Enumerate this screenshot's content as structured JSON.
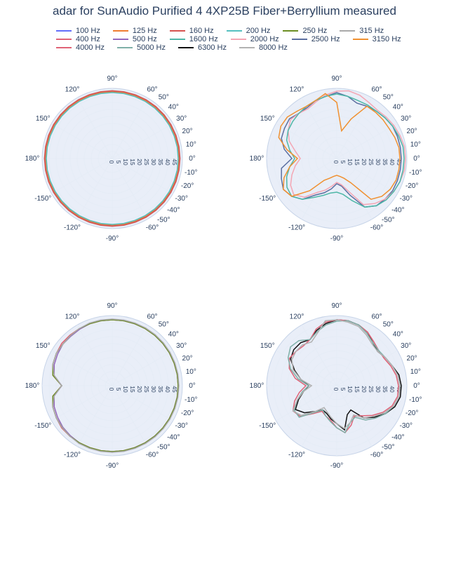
{
  "title": "adar for SunAudio Purified 4 4XP25B Fiber+Berryllium measured",
  "title_fontsize": 17,
  "title_color": "#2a3f5f",
  "background_color": "#ffffff",
  "plot_background": "#e9eef8",
  "grid_color": "#e5ecf6",
  "axis_label_color": "#2a3f5f",
  "axis_label_fontsize": 10,
  "radial_label_fontsize": 8.5,
  "series_stroke_width": 1.5,
  "angles_deg": [
    -180,
    -170,
    -160,
    -150,
    -140,
    -130,
    -120,
    -110,
    -100,
    -90,
    -80,
    -70,
    -60,
    -50,
    -40,
    -30,
    -20,
    -10,
    0,
    10,
    20,
    30,
    40,
    50,
    60,
    70,
    80,
    90,
    100,
    110,
    120,
    130,
    140,
    150,
    160,
    170,
    180
  ],
  "angle_ticks_deg": [
    0,
    10,
    20,
    30,
    40,
    50,
    60,
    90,
    120,
    150,
    180,
    -150,
    -120,
    -90,
    -60,
    -50,
    -40,
    -30,
    -20,
    -10
  ],
  "angle_tick_labels": [
    "0°",
    "10°",
    "20°",
    "30°",
    "40°",
    "50°",
    "60°",
    "90°",
    "120°",
    "150°",
    "180°",
    "-150°",
    "-120°",
    "-90°",
    "-60°",
    "-50°",
    "-40°",
    "-30°",
    "-20°",
    "-10°"
  ],
  "r_max": 50,
  "r_ticks": [
    0,
    5,
    10,
    15,
    20,
    25,
    30,
    35,
    40,
    45
  ],
  "legend": [
    {
      "label": "100 Hz",
      "color": "#636efa"
    },
    {
      "label": "125 Hz",
      "color": "#ef7d30"
    },
    {
      "label": "160 Hz",
      "color": "#d6534f"
    },
    {
      "label": "200 Hz",
      "color": "#55c0c0"
    },
    {
      "label": "250 Hz",
      "color": "#6b8e23"
    },
    {
      "label": "315 Hz",
      "color": "#a9a9a9"
    },
    {
      "label": "400 Hz",
      "color": "#e06377"
    },
    {
      "label": "500 Hz",
      "color": "#9467bd"
    },
    {
      "label": "1600 Hz",
      "color": "#4fb7a7"
    },
    {
      "label": "2000 Hz",
      "color": "#f4a6b4"
    },
    {
      "label": "2500 Hz",
      "color": "#5b6fa0"
    },
    {
      "label": "3150 Hz",
      "color": "#f09030"
    },
    {
      "label": "4000 Hz",
      "color": "#e06377"
    },
    {
      "label": "5000 Hz",
      "color": "#7fb0a8"
    },
    {
      "label": "6300 Hz",
      "color": "#111111"
    },
    {
      "label": "8000 Hz",
      "color": "#b2b2b2"
    }
  ],
  "panels": [
    {
      "id": "p1",
      "series": [
        {
          "color": "#636efa",
          "r": [
            48,
            48,
            48,
            48,
            48,
            48,
            48,
            48,
            48,
            48,
            48,
            48,
            48,
            48,
            48,
            48,
            48,
            48,
            48,
            48,
            48,
            48,
            48,
            48,
            48,
            48,
            48,
            48,
            48,
            48,
            48,
            48,
            48,
            48,
            48,
            48,
            48
          ]
        },
        {
          "color": "#ef7d30",
          "r": [
            47.5,
            47.5,
            47.5,
            47.5,
            47.5,
            47.5,
            47.5,
            47.5,
            47.5,
            47.5,
            47.5,
            47.5,
            47.5,
            47.5,
            47.5,
            47.5,
            47.5,
            47.5,
            47.5,
            47.5,
            47.5,
            47.5,
            47.5,
            47.5,
            47.5,
            47.5,
            47.5,
            47.5,
            47.5,
            47.5,
            47.5,
            47.5,
            47.5,
            47.5,
            47.5,
            47.5,
            47.5
          ]
        },
        {
          "color": "#d6534f",
          "r": [
            48.3,
            48.3,
            48.3,
            48.3,
            48.3,
            48.3,
            48.3,
            48.3,
            48.3,
            48.3,
            48.3,
            48.3,
            48.3,
            48.3,
            48.3,
            48.3,
            48.3,
            48.3,
            48.3,
            48.3,
            48.3,
            48.3,
            48.3,
            48.3,
            48.3,
            48.3,
            48.3,
            48.3,
            48.3,
            48.3,
            48.3,
            48.3,
            48.3,
            48.3,
            48.3,
            48.3,
            48.3
          ]
        },
        {
          "color": "#55c0c0",
          "r": [
            47,
            47,
            47,
            47,
            47,
            47,
            47,
            47,
            47,
            47,
            47,
            47,
            47,
            47,
            47,
            47,
            47,
            47,
            47,
            47,
            47,
            47,
            47,
            47,
            47,
            47,
            47,
            47,
            47,
            47,
            47,
            47,
            47,
            47,
            47,
            47,
            47
          ]
        }
      ]
    },
    {
      "id": "p2",
      "series": [
        {
          "color": "#5b6fa0",
          "r": [
            32,
            40,
            42,
            44,
            42,
            38,
            30,
            26,
            22,
            18,
            20,
            28,
            40,
            44,
            45,
            46,
            46,
            46,
            46,
            46,
            46,
            46,
            45,
            44,
            43,
            42,
            45,
            47,
            45,
            44,
            42,
            42,
            44,
            43,
            42,
            38,
            32
          ]
        },
        {
          "color": "#f4a6b4",
          "r": [
            26,
            30,
            34,
            38,
            40,
            36,
            28,
            24,
            20,
            17,
            19,
            25,
            38,
            42,
            45,
            47,
            48,
            49,
            49,
            49,
            48,
            47,
            46,
            45,
            46,
            48,
            49,
            48,
            46,
            43,
            41,
            42,
            43,
            40,
            36,
            30,
            26
          ]
        },
        {
          "color": "#4fb7a7",
          "r": [
            30,
            34,
            38,
            41,
            42,
            38,
            32,
            28,
            25,
            24,
            26,
            32,
            40,
            44,
            46,
            47,
            48,
            48,
            48,
            48,
            47,
            46,
            45,
            44,
            44,
            44,
            45,
            46,
            45,
            44,
            43,
            42,
            41,
            40,
            38,
            34,
            30
          ]
        },
        {
          "color": "#f09030",
          "r": [
            28,
            34,
            40,
            44,
            42,
            30,
            18,
            15,
            13,
            12,
            13,
            15,
            20,
            38,
            42,
            44,
            45,
            45,
            45,
            45,
            44,
            43,
            43,
            43,
            43,
            30,
            20,
            40,
            47,
            44,
            43,
            44,
            46,
            46,
            44,
            36,
            28
          ]
        }
      ]
    },
    {
      "id": "p3",
      "series": [
        {
          "color": "#e06377",
          "r": [
            36,
            43,
            45,
            46,
            47,
            47,
            47,
            47,
            47,
            47,
            47,
            47,
            47,
            47,
            47,
            47,
            47,
            47,
            47,
            47,
            47,
            47,
            47,
            47,
            47,
            47,
            47,
            47,
            47,
            47,
            47,
            47,
            47,
            46,
            45,
            43,
            36
          ]
        },
        {
          "color": "#9467bd",
          "r": [
            36,
            42,
            44,
            45,
            46,
            46.5,
            47,
            47,
            47,
            47,
            47,
            47,
            47,
            47,
            47,
            47,
            47,
            47,
            47,
            47,
            47,
            47,
            47,
            47,
            47,
            47,
            47,
            47,
            47,
            47,
            46.5,
            46,
            46,
            45,
            44,
            42,
            36
          ]
        },
        {
          "color": "#6b8e23",
          "r": [
            36,
            43,
            45,
            46,
            46.5,
            47,
            47,
            47,
            47,
            47,
            47,
            47,
            47,
            47,
            47,
            47,
            47,
            47,
            47,
            47,
            47,
            47,
            47,
            47,
            47,
            47,
            47,
            47,
            47,
            47,
            47,
            46.5,
            46,
            46,
            45,
            43,
            36
          ]
        },
        {
          "color": "#a9a9a9",
          "r": [
            36,
            42,
            45,
            46,
            46.5,
            47,
            47.5,
            47.5,
            47.5,
            47.5,
            47.5,
            47.5,
            47.5,
            47.5,
            47.5,
            47.5,
            47.5,
            47.5,
            47.5,
            47.5,
            47.5,
            47.5,
            47.5,
            47.5,
            47.5,
            47.5,
            47.5,
            47.5,
            47.5,
            47.5,
            47,
            46.5,
            46,
            46,
            45,
            42,
            36
          ]
        }
      ]
    },
    {
      "id": "p4",
      "series": [
        {
          "color": "#111111",
          "r": [
            20,
            24,
            29,
            34,
            30,
            24,
            20,
            21,
            24,
            27,
            32,
            22,
            20,
            30,
            35,
            40,
            44,
            46,
            46,
            45,
            42,
            40,
            38,
            40,
            44,
            46,
            47,
            47,
            45,
            42,
            38,
            40,
            40,
            38,
            32,
            26,
            20
          ]
        },
        {
          "color": "#e06377",
          "r": [
            22,
            27,
            32,
            36,
            34,
            26,
            21,
            23,
            25,
            30,
            34,
            30,
            25,
            28,
            33,
            38,
            42,
            44,
            44,
            43,
            41,
            39,
            39,
            41,
            44,
            46,
            47,
            47,
            46,
            43,
            38,
            37,
            38,
            39,
            36,
            30,
            22
          ]
        },
        {
          "color": "#7fb0a8",
          "r": [
            20,
            25,
            30,
            35,
            35,
            25,
            20,
            23,
            26,
            30,
            34,
            28,
            26,
            32,
            36,
            40,
            43,
            45,
            45,
            44,
            42,
            40,
            39,
            40,
            43,
            46,
            47,
            46,
            44,
            41,
            38,
            42,
            43,
            40,
            35,
            28,
            20
          ]
        },
        {
          "color": "#b2b2b2",
          "r": [
            18,
            24,
            30,
            36,
            33,
            24,
            18,
            20,
            23,
            27,
            31,
            28,
            24,
            30,
            34,
            39,
            43,
            45,
            45,
            44,
            42,
            40,
            38,
            39,
            42,
            45,
            46,
            47,
            47,
            40,
            36,
            38,
            38,
            37,
            33,
            26,
            18
          ]
        }
      ]
    }
  ]
}
